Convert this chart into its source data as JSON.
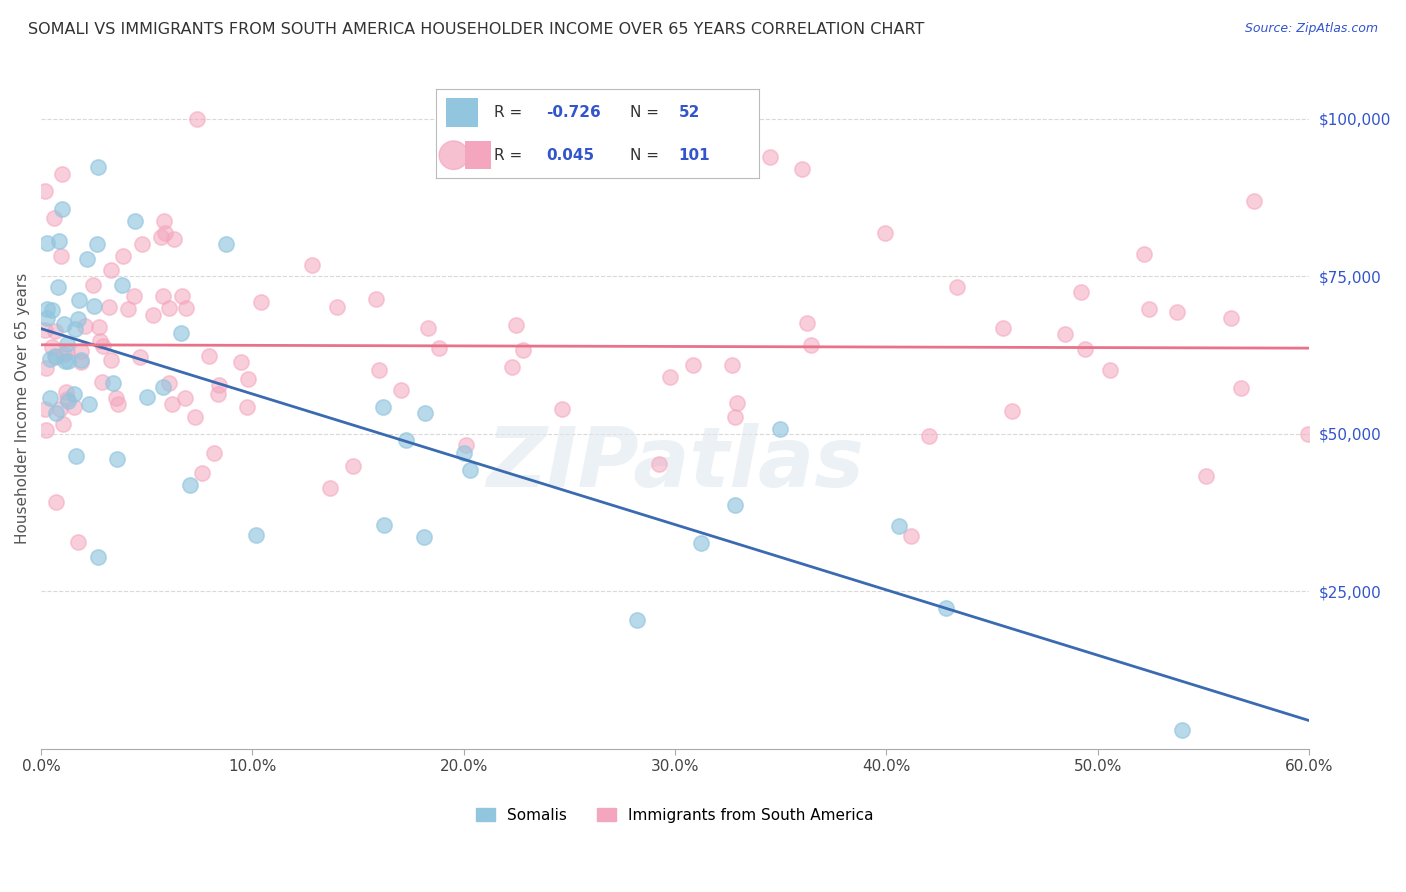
{
  "title": "SOMALI VS IMMIGRANTS FROM SOUTH AMERICA HOUSEHOLDER INCOME OVER 65 YEARS CORRELATION CHART",
  "source": "Source: ZipAtlas.com",
  "xlabel_ticks": [
    "0.0%",
    "10.0%",
    "20.0%",
    "30.0%",
    "40.0%",
    "50.0%",
    "60.0%"
  ],
  "xlabel_vals": [
    0.0,
    10.0,
    20.0,
    30.0,
    40.0,
    50.0,
    60.0
  ],
  "ylabel_ticks": [
    "$100,000",
    "$75,000",
    "$50,000",
    "$25,000"
  ],
  "ylabel_vals": [
    100000,
    75000,
    50000,
    25000
  ],
  "xlim": [
    0.0,
    60.0
  ],
  "ylim": [
    0,
    108000
  ],
  "ylabel": "Householder Income Over 65 years",
  "somali_R": -0.726,
  "somali_N": 52,
  "south_america_R": 0.045,
  "south_america_N": 101,
  "somali_color": "#92c5de",
  "south_america_color": "#f4a6be",
  "somali_line_color": "#3a6ab0",
  "south_america_line_color": "#e8728a",
  "background_color": "#ffffff",
  "grid_color": "#d0d0d0",
  "title_color": "#333333",
  "watermark": "ZIPatlas",
  "legend_label_somali": "Somalis",
  "legend_label_south_america": "Immigrants from South America",
  "somali_marker_size": 120,
  "south_america_marker_size": 120,
  "r_label_color_blue": "#3355cc",
  "legend_border_color": "#bbbbbb"
}
